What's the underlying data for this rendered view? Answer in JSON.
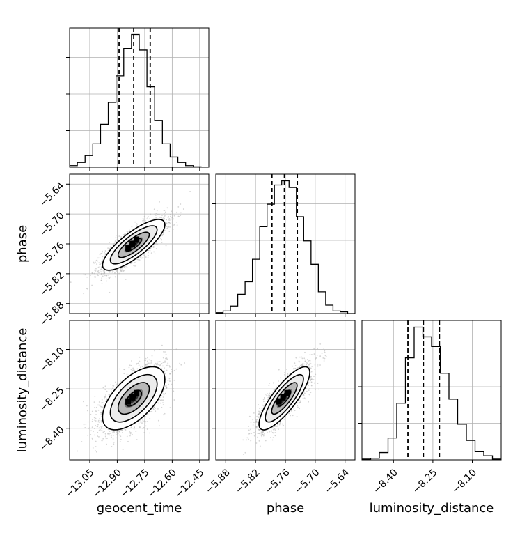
{
  "chart_data": {
    "type": "corner",
    "parameters": [
      {
        "key": "geocent_time",
        "label": "geocent_time",
        "lim": [
          -13.16,
          -12.4
        ],
        "ticks": [
          "-13.05",
          "-12.90",
          "-12.75",
          "-12.60",
          "-12.45"
        ],
        "quantiles": [
          -12.89,
          -12.81,
          -12.72
        ],
        "median": -12.81
      },
      {
        "key": "phase",
        "label": "phase",
        "lim": [
          -5.9,
          -5.62
        ],
        "ticks": [
          "-5.88",
          "-5.82",
          "-5.76",
          "-5.70",
          "-5.64"
        ],
        "quantiles": [
          -5.787,
          -5.762,
          -5.736
        ],
        "median": -5.762
      },
      {
        "key": "luminosity_distance",
        "label": "luminosity_distance",
        "lim": [
          -8.52,
          -7.99
        ],
        "ticks": [
          "-8.40",
          "-8.25",
          "-8.10"
        ],
        "quantiles": [
          -8.345,
          -8.286,
          -8.225
        ],
        "median": -8.286
      }
    ],
    "histograms": [
      {
        "param": "geocent_time",
        "counts": [
          0.2,
          0.6,
          1.5,
          3.0,
          5.5,
          8.3,
          11.7,
          15.2,
          17.0,
          15.0,
          10.3,
          6.0,
          3.0,
          1.3,
          0.6,
          0.2,
          0.05,
          0
        ]
      },
      {
        "param": "phase",
        "counts": [
          0.1,
          0.3,
          0.9,
          2.3,
          3.8,
          6.5,
          10.4,
          13.1,
          15.4,
          15.9,
          15.1,
          11.6,
          8.7,
          5.9,
          2.6,
          1.0,
          0.3,
          0.2,
          0
        ]
      },
      {
        "param": "luminosity_distance",
        "counts": [
          0.1,
          0.2,
          0.9,
          2.7,
          7.0,
          12.6,
          16.4,
          15.2,
          14.0,
          10.7,
          7.5,
          4.4,
          2.4,
          1.0,
          0.5,
          0.1
        ]
      }
    ],
    "scatter_panels": [
      {
        "x": "geocent_time",
        "y": "phase",
        "correlation": 0.8
      },
      {
        "x": "geocent_time",
        "y": "luminosity_distance",
        "correlation": 0.6
      },
      {
        "x": "phase",
        "y": "luminosity_distance",
        "correlation": 0.82
      }
    ],
    "contour_levels_sigma": [
      0.5,
      1.0,
      1.5,
      2.0
    ],
    "grid": true,
    "colors": {
      "line": "#000000",
      "grid": "#b0b0b0",
      "scatter": "#b3b3b3"
    }
  }
}
